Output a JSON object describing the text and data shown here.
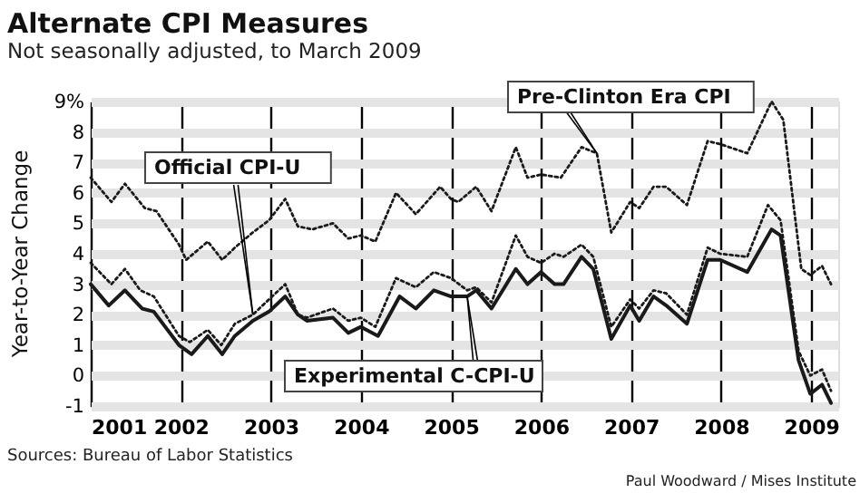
{
  "chart_data": {
    "type": "line",
    "title": "Alternate CPI Measures",
    "subtitle": "Not seasonally adjusted, to March 2009",
    "ylabel": "Year-to-Year Change",
    "xlim": [
      2001,
      2009.3
    ],
    "xticks": [
      2001,
      2002,
      2003,
      2004,
      2005,
      2006,
      2007,
      2008,
      2009
    ],
    "ylim": [
      -1,
      9
    ],
    "yticks": [
      -1,
      0,
      1,
      2,
      3,
      4,
      5,
      6,
      7,
      8,
      {
        "value": 9,
        "label": "9%"
      }
    ],
    "grid": true,
    "legend": false,
    "marker": "none",
    "series": [
      {
        "name": "Official CPI-U",
        "color": "#1a1a1a",
        "line_style": "dotted",
        "x": [
          2001.0,
          2001.23,
          2001.38,
          2001.55,
          2001.7,
          2001.98,
          2002.1,
          2002.3,
          2002.45,
          2002.6,
          2002.8,
          2002.98,
          2003.16,
          2003.3,
          2003.4,
          2003.69,
          2003.86,
          2004.0,
          2004.16,
          2004.39,
          2004.61,
          2004.81,
          2005.0,
          2005.18,
          2005.28,
          2005.45,
          2005.72,
          2005.85,
          2006.0,
          2006.15,
          2006.25,
          2006.45,
          2006.58,
          2006.78,
          2006.99,
          2007.09,
          2007.25,
          2007.39,
          2007.62,
          2007.85,
          2007.99,
          2008.29,
          2008.52,
          2008.66,
          2008.86,
          2008.99,
          2009.12,
          2009.22
        ],
        "values": [
          3.7,
          3.0,
          3.5,
          2.8,
          2.6,
          1.3,
          1.1,
          1.5,
          1.0,
          1.7,
          2.0,
          2.5,
          3.0,
          2.0,
          1.9,
          2.2,
          1.8,
          1.9,
          1.6,
          3.2,
          2.9,
          3.4,
          3.2,
          2.8,
          2.9,
          2.4,
          4.6,
          3.9,
          3.7,
          4.0,
          3.9,
          4.3,
          3.9,
          1.6,
          2.5,
          2.2,
          2.8,
          2.7,
          2.0,
          4.2,
          4.0,
          3.9,
          5.6,
          5.1,
          0.8,
          0.0,
          0.2,
          -0.5
        ]
      },
      {
        "name": "Experimental C-CPI-U",
        "color": "#1a1a1a",
        "line_style": "solid",
        "x": [
          2001.0,
          2001.2,
          2001.38,
          2001.57,
          2001.7,
          2001.98,
          2002.12,
          2002.3,
          2002.46,
          2002.6,
          2002.8,
          2002.98,
          2003.16,
          2003.3,
          2003.4,
          2003.69,
          2003.86,
          2004.0,
          2004.19,
          2004.43,
          2004.61,
          2004.81,
          2005.0,
          2005.18,
          2005.28,
          2005.45,
          2005.72,
          2005.85,
          2006.0,
          2006.15,
          2006.25,
          2006.45,
          2006.58,
          2006.78,
          2006.99,
          2007.09,
          2007.25,
          2007.39,
          2007.62,
          2007.85,
          2007.99,
          2008.29,
          2008.56,
          2008.66,
          2008.86,
          2008.99,
          2009.12,
          2009.22
        ],
        "values": [
          3.0,
          2.3,
          2.8,
          2.2,
          2.1,
          1.0,
          0.7,
          1.3,
          0.7,
          1.3,
          1.8,
          2.1,
          2.6,
          2.0,
          1.8,
          1.9,
          1.4,
          1.6,
          1.3,
          2.6,
          2.2,
          2.8,
          2.6,
          2.6,
          2.8,
          2.2,
          3.5,
          3.0,
          3.4,
          3.0,
          3.0,
          3.9,
          3.5,
          1.2,
          2.3,
          1.8,
          2.6,
          2.3,
          1.7,
          3.8,
          3.8,
          3.4,
          4.8,
          4.6,
          0.5,
          -0.6,
          -0.3,
          -0.9
        ]
      },
      {
        "name": "Pre-Clinton Era CPI",
        "color": "#1a1a1a",
        "line_style": "dotted",
        "x": [
          2001.0,
          2001.23,
          2001.38,
          2001.6,
          2001.73,
          2001.98,
          2002.06,
          2002.3,
          2002.46,
          2002.6,
          2002.8,
          2002.98,
          2003.16,
          2003.3,
          2003.46,
          2003.69,
          2003.86,
          2004.0,
          2004.16,
          2004.39,
          2004.61,
          2004.88,
          2005.0,
          2005.08,
          2005.28,
          2005.45,
          2005.72,
          2005.85,
          2006.0,
          2006.22,
          2006.45,
          2006.62,
          2006.78,
          2006.99,
          2007.09,
          2007.25,
          2007.39,
          2007.62,
          2007.85,
          2007.99,
          2008.29,
          2008.56,
          2008.69,
          2008.89,
          2008.99,
          2009.12,
          2009.22
        ],
        "values": [
          6.5,
          5.7,
          6.3,
          5.5,
          5.4,
          4.3,
          3.8,
          4.4,
          3.8,
          4.2,
          4.7,
          5.1,
          5.8,
          4.9,
          4.8,
          5.0,
          4.5,
          4.6,
          4.4,
          6.0,
          5.3,
          6.2,
          5.8,
          5.7,
          6.2,
          5.4,
          7.5,
          6.5,
          6.6,
          6.5,
          7.5,
          7.3,
          4.7,
          5.7,
          5.5,
          6.2,
          6.2,
          5.6,
          7.7,
          7.6,
          7.3,
          9.0,
          8.4,
          3.5,
          3.3,
          3.6,
          3.0
        ]
      }
    ],
    "annotations": [
      "Sources: Bureau of Labor Statistics",
      "Paul Woodward / Mises Institute"
    ]
  }
}
